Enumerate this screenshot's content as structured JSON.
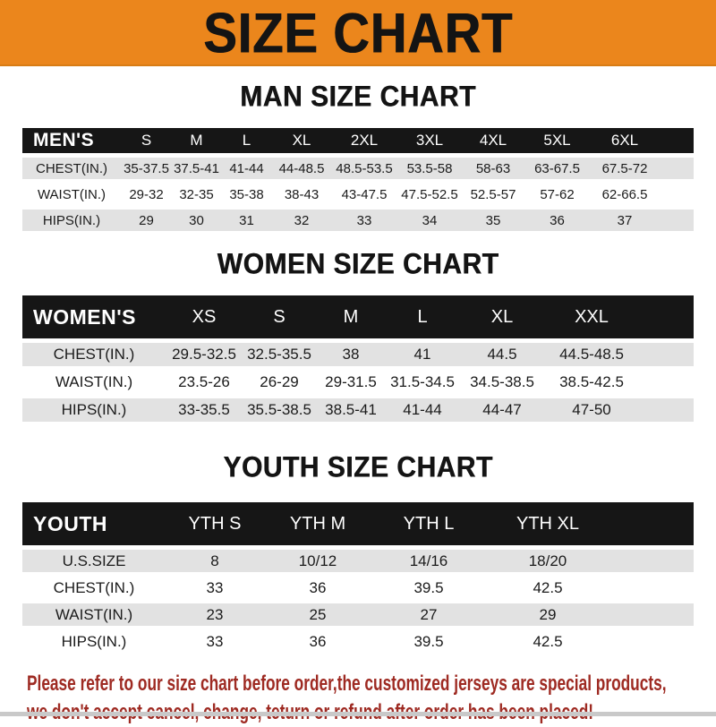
{
  "banner": {
    "title": "SIZE CHART"
  },
  "sections": [
    {
      "title": "MAN SIZE CHART",
      "table": {
        "header": [
          "MEN'S",
          "S",
          "M",
          "L",
          "XL",
          "2XL",
          "3XL",
          "4XL",
          "5XL",
          "6XL"
        ],
        "rows": [
          [
            "CHEST(IN.)",
            "35-37.5",
            "37.5-41",
            "41-44",
            "44-48.5",
            "48.5-53.5",
            "53.5-58",
            "58-63",
            "63-67.5",
            "67.5-72"
          ],
          [
            "WAIST(IN.)",
            "29-32",
            "32-35",
            "35-38",
            "38-43",
            "43-47.5",
            "47.5-52.5",
            "52.5-57",
            "57-62",
            "62-66.5"
          ],
          [
            "HIPS(IN.)",
            "29",
            "30",
            "31",
            "32",
            "33",
            "34",
            "35",
            "36",
            "37"
          ]
        ]
      }
    },
    {
      "title": "WOMEN SIZE CHART",
      "table": {
        "header": [
          "WOMEN'S",
          "XS",
          "S",
          "M",
          "L",
          "XL",
          "XXL"
        ],
        "rows": [
          [
            "CHEST(IN.)",
            "29.5-32.5",
            "32.5-35.5",
            "38",
            "41",
            "44.5",
            "44.5-48.5"
          ],
          [
            "WAIST(IN.)",
            "23.5-26",
            "26-29",
            "29-31.5",
            "31.5-34.5",
            "34.5-38.5",
            "38.5-42.5"
          ],
          [
            "HIPS(IN.)",
            "33-35.5",
            "35.5-38.5",
            "38.5-41",
            "41-44",
            "44-47",
            "47-50"
          ]
        ]
      }
    },
    {
      "title": "YOUTH SIZE CHART",
      "table": {
        "header": [
          "YOUTH",
          "YTH S",
          "YTH M",
          "YTH L",
          "YTH XL"
        ],
        "rows": [
          [
            "U.S.SIZE",
            "8",
            "10/12",
            "14/16",
            "18/20"
          ],
          [
            "CHEST(IN.)",
            "33",
            "36",
            "39.5",
            "42.5"
          ],
          [
            "WAIST(IN.)",
            "23",
            "25",
            "27",
            "29"
          ],
          [
            "HIPS(IN.)",
            "33",
            "36",
            "39.5",
            "42.5"
          ]
        ]
      }
    }
  ],
  "note": {
    "line1": "Please refer to our size chart before order,the customized jerseys are special products,",
    "line2": "we don't accept cancel, change, teturn or refund after order has been placed!"
  },
  "colors": {
    "banner_bg": "#EB861C",
    "header_bar": "#161616",
    "row_stripe": "#E2E2E2",
    "note_text": "#9E2A22"
  }
}
